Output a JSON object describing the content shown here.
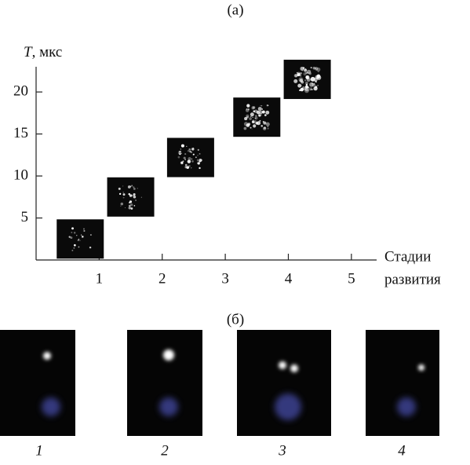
{
  "chart_data": {
    "type": "image-scatter",
    "panel_label": "(а)",
    "y_label_symbol": "T",
    "y_label_unit": ", мкс",
    "x_label_lines": [
      "Стадии",
      "развития"
    ],
    "x": [
      0.7,
      1.5,
      2.45,
      3.5,
      4.3
    ],
    "values": [
      2.5,
      7.5,
      12.2,
      17,
      21.5
    ],
    "xlim": [
      0,
      5.4
    ],
    "ylim": [
      0,
      23
    ],
    "xticks": [
      1,
      2,
      3,
      4,
      5
    ],
    "yticks": [
      5,
      10,
      15,
      20
    ]
  },
  "panel_b": {
    "label": "(б)",
    "photo_labels": [
      "1",
      "2",
      "3",
      "4"
    ]
  }
}
